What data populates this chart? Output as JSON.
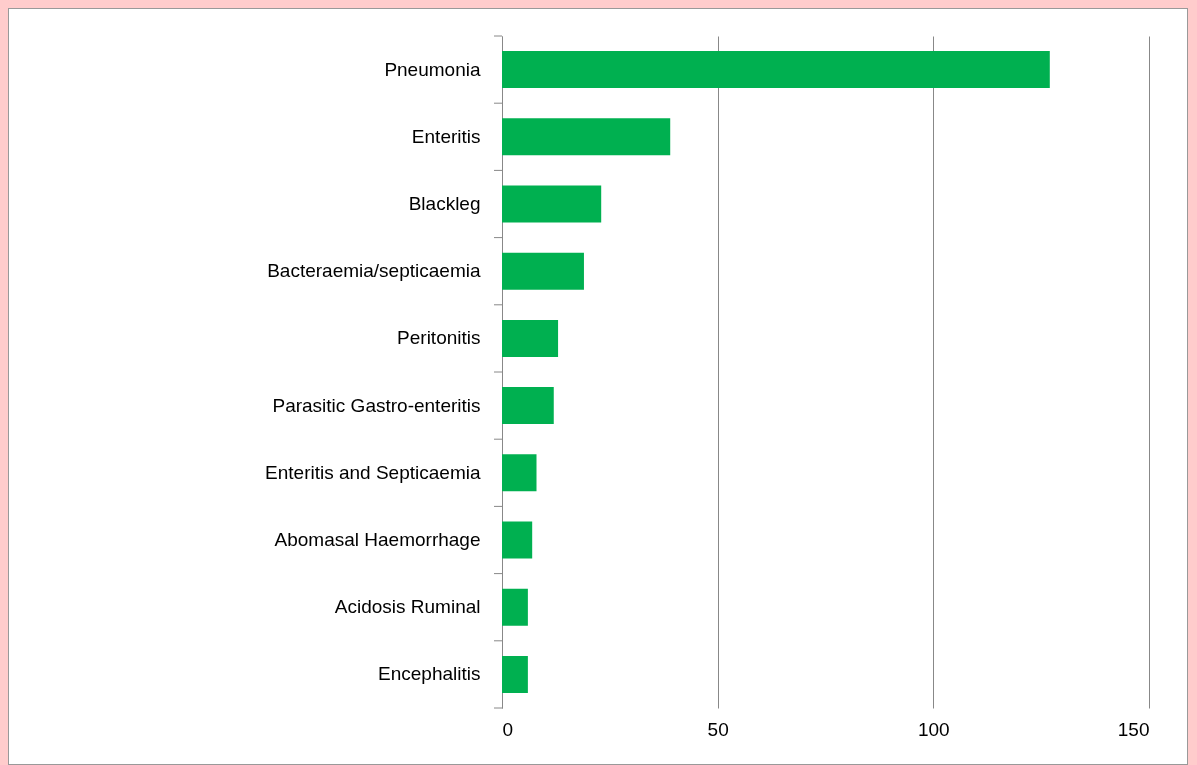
{
  "chart_data": {
    "type": "bar",
    "orientation": "horizontal",
    "categories": [
      "Pneumonia",
      "Enteritis",
      "Blackleg",
      "Bacteraemia/septicaemia",
      "Peritonitis",
      "Parasitic Gastro-enteritis",
      "Enteritis and Septicaemia",
      "Abomasal Haemorrhage",
      "Acidosis Ruminal",
      "Encephalitis"
    ],
    "values": [
      127,
      39,
      23,
      19,
      13,
      12,
      8,
      7,
      6,
      6
    ],
    "color": "#00b050",
    "xlim": [
      0,
      150
    ],
    "xticks": [
      0,
      50,
      100,
      150
    ],
    "grid": "x"
  }
}
